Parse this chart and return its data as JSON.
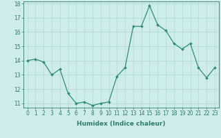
{
  "x": [
    0,
    1,
    2,
    3,
    4,
    5,
    6,
    7,
    8,
    9,
    10,
    11,
    12,
    13,
    14,
    15,
    16,
    17,
    18,
    19,
    20,
    21,
    22,
    23
  ],
  "y": [
    14.0,
    14.1,
    13.9,
    13.0,
    13.4,
    11.7,
    11.0,
    11.1,
    10.85,
    11.0,
    11.1,
    12.9,
    13.5,
    16.4,
    16.4,
    17.85,
    16.5,
    16.1,
    15.2,
    14.8,
    15.2,
    13.5,
    12.8,
    13.5
  ],
  "line_color": "#2e8b7a",
  "marker": "D",
  "marker_size": 2.0,
  "line_width": 0.9,
  "bg_color": "#ceecea",
  "grid_color": "#aed8d4",
  "xlabel": "Humidex (Indice chaleur)",
  "ylim": [
    10.7,
    18.15
  ],
  "xlim": [
    -0.5,
    23.5
  ],
  "yticks": [
    11,
    12,
    13,
    14,
    15,
    16,
    17,
    18
  ],
  "xticks": [
    0,
    1,
    2,
    3,
    4,
    5,
    6,
    7,
    8,
    9,
    10,
    11,
    12,
    13,
    14,
    15,
    16,
    17,
    18,
    19,
    20,
    21,
    22,
    23
  ],
  "tick_color": "#2e7b6a",
  "label_fontsize": 6.5,
  "tick_fontsize": 5.5
}
